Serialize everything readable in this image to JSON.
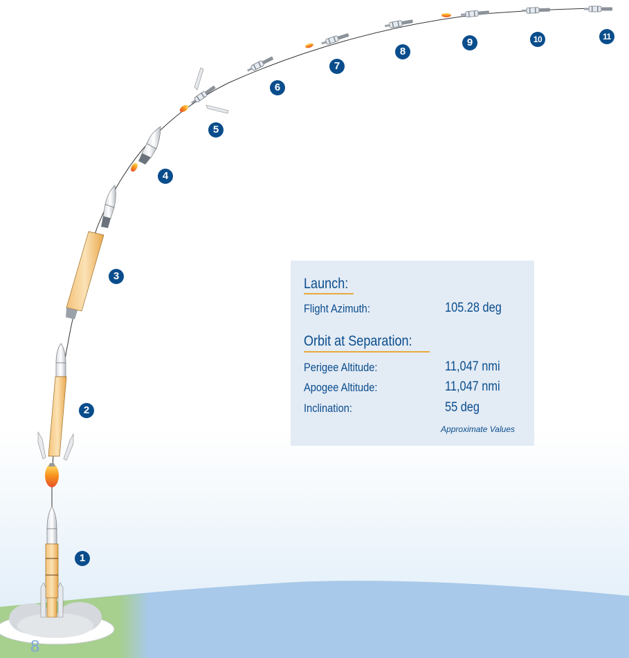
{
  "steps": [
    "1",
    "2",
    "3",
    "4",
    "5",
    "6",
    "7",
    "8",
    "9",
    "10",
    "11"
  ],
  "info": {
    "launch_heading": "Launch:",
    "flight_azimuth_label": "Flight Azimuth:",
    "flight_azimuth_value": "105.28 deg",
    "orbit_heading": "Orbit at Separation:",
    "perigee_label": "Perigee Altitude:",
    "perigee_value": "11,047 nmi",
    "apogee_label": "Apogee Altitude:",
    "apogee_value": "11,047 nmi",
    "inclination_label": "Inclination:",
    "inclination_value": "55 deg",
    "note": "Approximate Values"
  },
  "page_number": "8",
  "colors": {
    "badge": "#0a4d8c",
    "sky_ground": "#a8c9e9",
    "grass": "#a7cf8e",
    "booster_orange": "#f2b455",
    "panel": "#e3ebf5",
    "underline": "#e8a93a"
  }
}
